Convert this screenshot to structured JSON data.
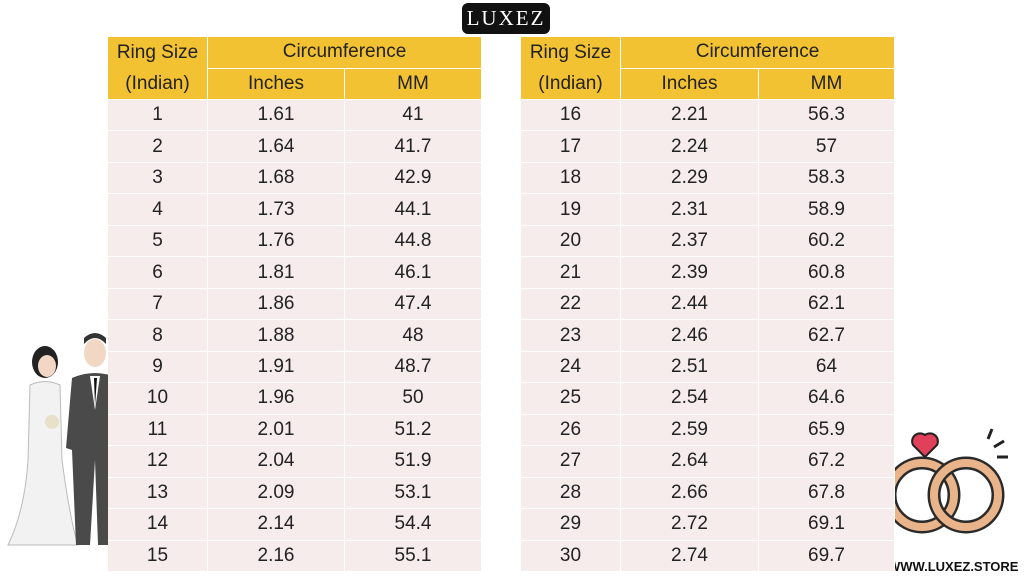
{
  "logo": "LUXEZ",
  "website": "WWW.LUXEZ.STORE",
  "tables": [
    {
      "header": {
        "size": "Ring Size",
        "size_sub": "(Indian)",
        "group": "Circumference",
        "col1": "Inches",
        "col2": "MM"
      },
      "rows": [
        [
          "1",
          "1.61",
          "41"
        ],
        [
          "2",
          "1.64",
          "41.7"
        ],
        [
          "3",
          "1.68",
          "42.9"
        ],
        [
          "4",
          "1.73",
          "44.1"
        ],
        [
          "5",
          "1.76",
          "44.8"
        ],
        [
          "6",
          "1.81",
          "46.1"
        ],
        [
          "7",
          "1.86",
          "47.4"
        ],
        [
          "8",
          "1.88",
          "48"
        ],
        [
          "9",
          "1.91",
          "48.7"
        ],
        [
          "10",
          "1.96",
          "50"
        ],
        [
          "11",
          "2.01",
          "51.2"
        ],
        [
          "12",
          "2.04",
          "51.9"
        ],
        [
          "13",
          "2.09",
          "53.1"
        ],
        [
          "14",
          "2.14",
          "54.4"
        ],
        [
          "15",
          "2.16",
          "55.1"
        ]
      ]
    },
    {
      "header": {
        "size": "Ring Size",
        "size_sub": "(Indian)",
        "group": "Circumference",
        "col1": "Inches",
        "col2": "MM"
      },
      "rows": [
        [
          "16",
          "2.21",
          "56.3"
        ],
        [
          "17",
          "2.24",
          "57"
        ],
        [
          "18",
          "2.29",
          "58.3"
        ],
        [
          "19",
          "2.31",
          "58.9"
        ],
        [
          "20",
          "2.37",
          "60.2"
        ],
        [
          "21",
          "2.39",
          "60.8"
        ],
        [
          "22",
          "2.44",
          "62.1"
        ],
        [
          "23",
          "2.46",
          "62.7"
        ],
        [
          "24",
          "2.51",
          "64"
        ],
        [
          "25",
          "2.54",
          "64.6"
        ],
        [
          "26",
          "2.59",
          "65.9"
        ],
        [
          "27",
          "2.64",
          "67.2"
        ],
        [
          "28",
          "2.66",
          "67.8"
        ],
        [
          "29",
          "2.72",
          "69.1"
        ],
        [
          "30",
          "2.74",
          "69.7"
        ]
      ]
    }
  ]
}
